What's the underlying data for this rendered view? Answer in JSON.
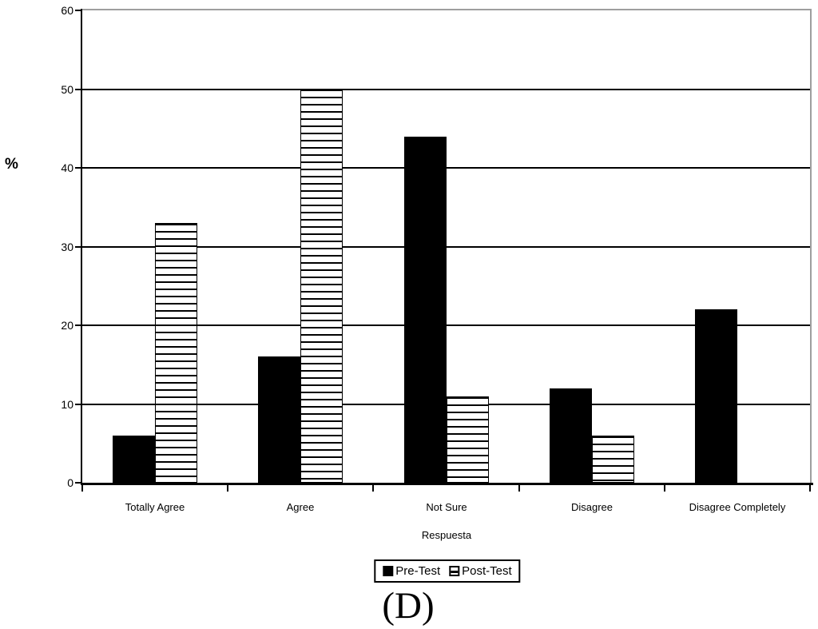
{
  "caption": "(D)",
  "colors": {
    "pre_test_fill": "#000000",
    "post_test_stripe": "#000000",
    "post_test_base": "#ffffff",
    "gridline": "#000000",
    "axis": "#000000",
    "plot_border": "#9e9e9e",
    "background": "#ffffff"
  },
  "chart_data": {
    "type": "bar",
    "title": "",
    "xlabel": "Respuesta",
    "ylabel": "%",
    "categories": [
      "Totally Agree",
      "Agree",
      "Not Sure",
      "Disagree",
      "Disagree Completely"
    ],
    "series": [
      {
        "name": "Pre-Test",
        "style": "solid-black",
        "values": [
          6,
          16,
          44,
          12,
          22
        ]
      },
      {
        "name": "Post-Test",
        "style": "horizontal-stripes",
        "values": [
          33,
          50,
          11,
          6,
          0
        ]
      }
    ],
    "ylim": [
      0,
      60
    ],
    "yticks": [
      0,
      10,
      20,
      30,
      40,
      50,
      60
    ],
    "grid": true,
    "legend_position": "bottom"
  }
}
